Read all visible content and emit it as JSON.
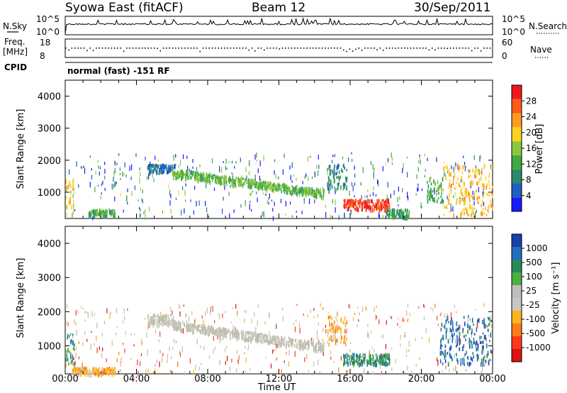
{
  "header": {
    "radar": "Syowa East (fitACF)",
    "beam": "Beam 12",
    "date": "30/Sep/2011"
  },
  "top_panels": {
    "nsky_label": "N.Sky",
    "nsearch_label": "N.Search",
    "nsky_ticks": [
      "10^5",
      "10^0"
    ],
    "nsearch_ticks": [
      "10^5",
      "10^0"
    ],
    "freq_label_1": "Freq.",
    "freq_label_2": "[MHz]",
    "freq_ticks": [
      "18",
      "8"
    ],
    "nave_label": "Nave",
    "nave_ticks": [
      "60",
      "0"
    ],
    "cpid_label": "CPID",
    "cpid_value": "normal (fast) -151 RF"
  },
  "colors": {
    "power": [
      "#1a1aff",
      "#1f5fbf",
      "#2a8a6a",
      "#3faa3f",
      "#8cc63f",
      "#ffd21f",
      "#ff9a1f",
      "#ff5a1a",
      "#ee1a1a"
    ],
    "velocity": [
      "#1a3faa",
      "#1f6fbf",
      "#2a8a5a",
      "#4ab03f",
      "#bebebe",
      "#c8c8c0",
      "#ffb41f",
      "#ff7a1a",
      "#ff3a1a",
      "#dd1111"
    ],
    "ground_scatter": "#bfbfb0"
  },
  "chart_data": [
    {
      "type": "heatmap",
      "name": "power",
      "ylabel": "Slant Range [km]",
      "xlabel": "Time UT",
      "xlim": [
        0,
        24
      ],
      "ylim": [
        180,
        4500
      ],
      "x_ticks": [
        "00:00",
        "04:00",
        "08:00",
        "12:00",
        "16:00",
        "20:00",
        "00:00"
      ],
      "y_ticks": [
        "1000",
        "2000",
        "3000",
        "4000"
      ],
      "colorbar_label": "Power [dB]",
      "colorbar_ticks": [
        "4",
        "8",
        "12",
        "16",
        "20",
        "24",
        "28"
      ],
      "colorbar_range": [
        0,
        30
      ],
      "features": [
        {
          "t0": 0.0,
          "t1": 0.5,
          "r0": 500,
          "r1": 1500,
          "value": 18
        },
        {
          "t0": 1.3,
          "t1": 2.8,
          "r0": 300,
          "r1": 480,
          "value": 12
        },
        {
          "t0": 4.6,
          "t1": 6.2,
          "r0": 1650,
          "r1": 1900,
          "value": 6
        },
        {
          "t0": 6.0,
          "t1": 14.5,
          "r0": 1000,
          "r1": 1650,
          "value": 13
        },
        {
          "t0": 14.7,
          "t1": 15.8,
          "r0": 1100,
          "r1": 1900,
          "value": 8
        },
        {
          "t0": 15.6,
          "t1": 18.2,
          "r0": 500,
          "r1": 800,
          "value": 27
        },
        {
          "t0": 18.0,
          "t1": 19.3,
          "r0": 250,
          "r1": 500,
          "value": 10
        },
        {
          "t0": 20.3,
          "t1": 21.2,
          "r0": 700,
          "r1": 1500,
          "value": 12
        },
        {
          "t0": 21.2,
          "t1": 24.0,
          "r0": 300,
          "r1": 1900,
          "value": 20
        }
      ]
    },
    {
      "type": "heatmap",
      "name": "velocity",
      "ylabel": "Slant Range [km]",
      "xlabel": "Time UT",
      "xlim": [
        0,
        24
      ],
      "ylim": [
        180,
        4500
      ],
      "x_ticks": [
        "00:00",
        "04:00",
        "08:00",
        "12:00",
        "16:00",
        "20:00",
        "00:00"
      ],
      "y_ticks": [
        "1000",
        "2000",
        "3000",
        "4000"
      ],
      "colorbar_label": "Velocity [m s⁻¹]",
      "colorbar_ticks": [
        "1000",
        "500",
        "100",
        "25",
        "-25",
        "-100",
        "-500",
        "-1000"
      ],
      "features": [
        {
          "t0": 0.0,
          "t1": 0.5,
          "r0": 500,
          "r1": 1400,
          "value": 300
        },
        {
          "t0": 0.4,
          "t1": 2.8,
          "r0": 200,
          "r1": 400,
          "value": -400
        },
        {
          "t0": 4.6,
          "t1": 6.2,
          "r0": 1650,
          "r1": 1950,
          "value": 0
        },
        {
          "t0": 6.0,
          "t1": 14.5,
          "r0": 1000,
          "r1": 1650,
          "value": 0
        },
        {
          "t0": 14.7,
          "t1": 15.8,
          "r0": 1100,
          "r1": 1900,
          "value": -200
        },
        {
          "t0": 15.6,
          "t1": 18.2,
          "r0": 500,
          "r1": 800,
          "value": 150
        },
        {
          "t0": 21.0,
          "t1": 24.0,
          "r0": 500,
          "r1": 1900,
          "value": 600
        }
      ]
    }
  ]
}
